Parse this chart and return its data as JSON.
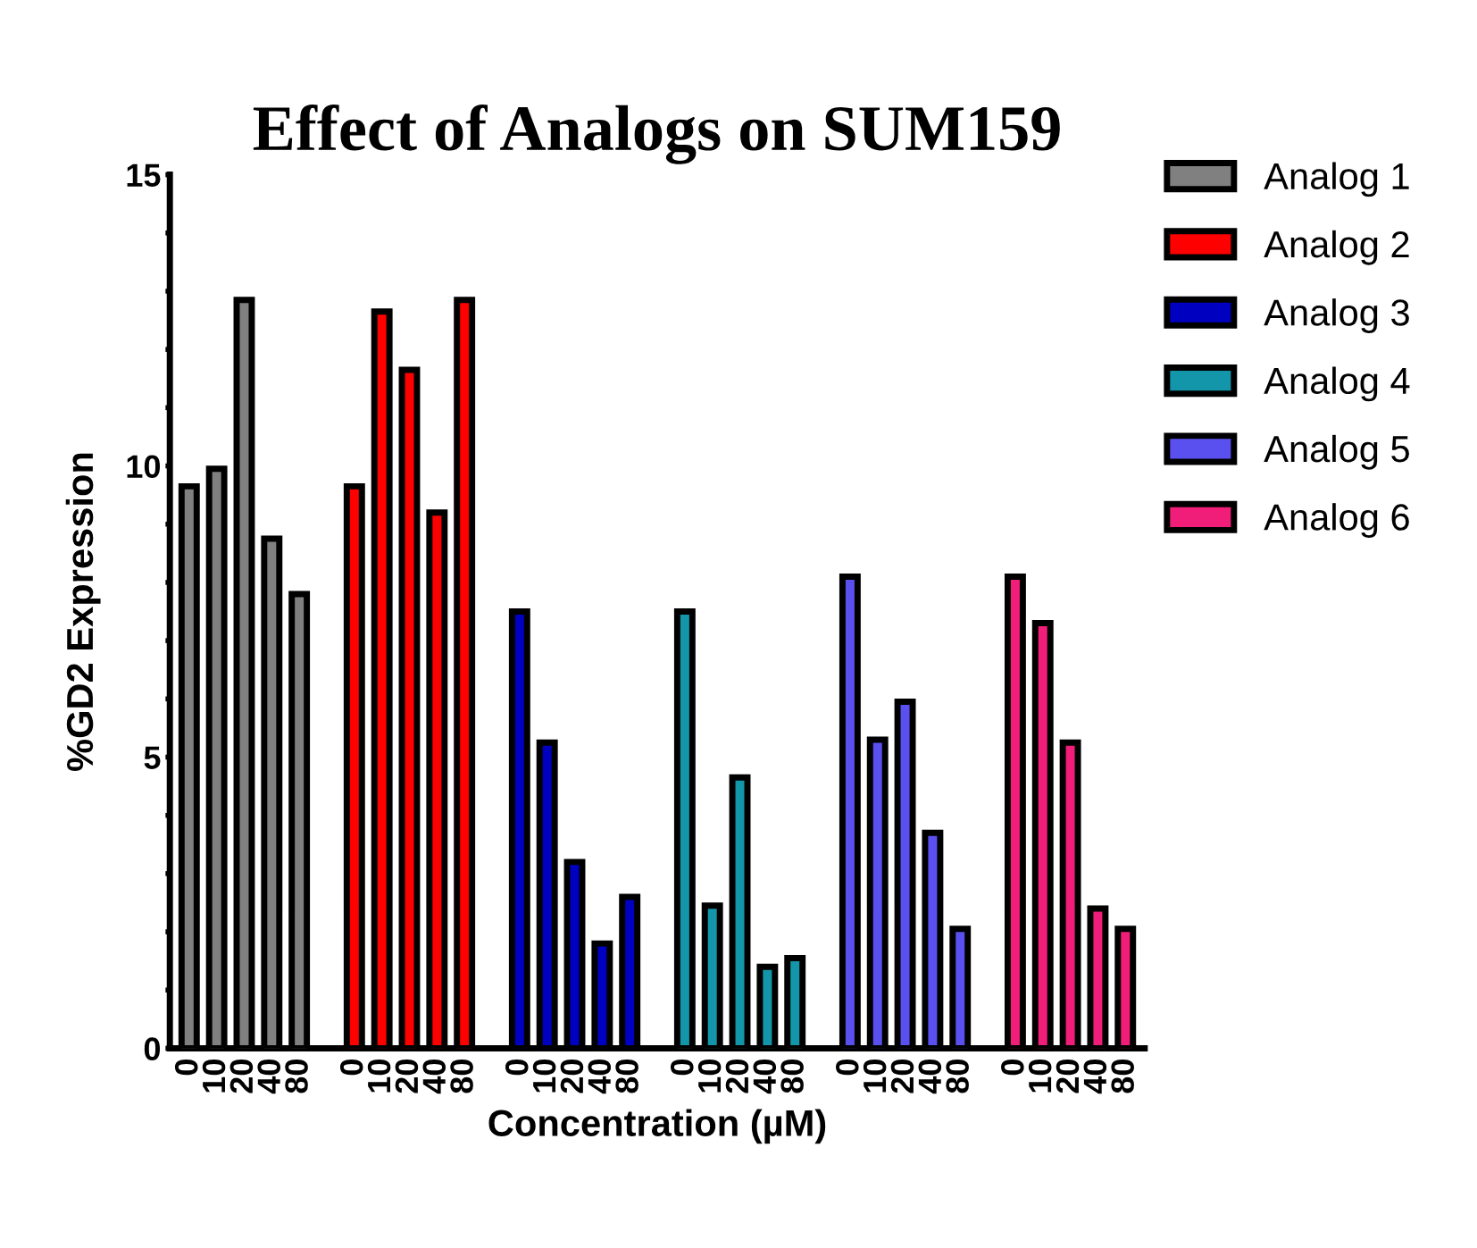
{
  "chart_data": {
    "type": "bar",
    "title": "Effect of Analogs on SUM159",
    "xlabel": "Concentration (µM)",
    "ylabel": "%GD2 Expression",
    "categories": [
      "0",
      "10",
      "20",
      "40",
      "80",
      null,
      "0",
      "10",
      "20",
      "40",
      "80",
      null,
      "0",
      "10",
      "20",
      "40",
      "80",
      null,
      "0",
      "10",
      "20",
      "40",
      "80",
      null,
      "0",
      "10",
      "20",
      "40",
      "80",
      null,
      "0",
      "10",
      "20",
      "40",
      "80"
    ],
    "series": [
      {
        "name": "Analog 1",
        "color": "#808080",
        "values": [
          9.65,
          9.95,
          12.85,
          8.75,
          7.8,
          null,
          null,
          null,
          null,
          null,
          null,
          null,
          null,
          null,
          null,
          null,
          null,
          null,
          null,
          null,
          null,
          null,
          null,
          null,
          null,
          null,
          null,
          null,
          null,
          null,
          null,
          null,
          null,
          null,
          null
        ]
      },
      {
        "name": "Analog 2",
        "color": "#ff0000",
        "values": [
          null,
          null,
          null,
          null,
          null,
          null,
          9.65,
          12.65,
          11.65,
          9.2,
          12.85,
          null,
          null,
          null,
          null,
          null,
          null,
          null,
          null,
          null,
          null,
          null,
          null,
          null,
          null,
          null,
          null,
          null,
          null,
          null,
          null,
          null,
          null,
          null,
          null
        ]
      },
      {
        "name": "Analog 3",
        "color": "#0000c0",
        "values": [
          null,
          null,
          null,
          null,
          null,
          null,
          null,
          null,
          null,
          null,
          null,
          null,
          7.5,
          5.25,
          3.2,
          1.8,
          2.6,
          null,
          null,
          null,
          null,
          null,
          null,
          null,
          null,
          null,
          null,
          null,
          null,
          null,
          null,
          null,
          null,
          null,
          null
        ]
      },
      {
        "name": "Analog 4",
        "color": "#1496aa",
        "values": [
          null,
          null,
          null,
          null,
          null,
          null,
          null,
          null,
          null,
          null,
          null,
          null,
          null,
          null,
          null,
          null,
          null,
          null,
          7.5,
          2.45,
          4.65,
          1.4,
          1.55,
          null,
          null,
          null,
          null,
          null,
          null,
          null,
          null,
          null,
          null,
          null,
          null
        ]
      },
      {
        "name": "Analog 5",
        "color": "#5a50f0",
        "values": [
          null,
          null,
          null,
          null,
          null,
          null,
          null,
          null,
          null,
          null,
          null,
          null,
          null,
          null,
          null,
          null,
          null,
          null,
          null,
          null,
          null,
          null,
          null,
          null,
          8.1,
          5.3,
          5.95,
          3.7,
          2.05,
          null,
          null,
          null,
          null,
          null,
          null
        ]
      },
      {
        "name": "Analog 6",
        "color": "#f01e78",
        "values": [
          null,
          null,
          null,
          null,
          null,
          null,
          null,
          null,
          null,
          null,
          null,
          null,
          null,
          null,
          null,
          null,
          null,
          null,
          null,
          null,
          null,
          null,
          null,
          null,
          null,
          null,
          null,
          null,
          null,
          null,
          8.1,
          7.3,
          5.25,
          2.4,
          2.05
        ]
      }
    ],
    "ylim": [
      0,
      15
    ],
    "yticks": [
      0,
      {
        "value": 1,
        "label": null
      },
      {
        "value": 2,
        "label": null
      },
      {
        "value": 3,
        "label": null
      },
      {
        "value": 4,
        "label": null
      },
      5,
      {
        "value": 6,
        "label": null
      },
      {
        "value": 7,
        "label": null
      },
      {
        "value": 8,
        "label": null
      },
      {
        "value": 9,
        "label": null
      },
      10,
      {
        "value": 11,
        "label": null
      },
      {
        "value": 12,
        "label": null
      },
      {
        "value": 13,
        "label": null
      },
      {
        "value": 14,
        "label": null
      },
      15
    ],
    "legend": "top right",
    "grid": false
  }
}
